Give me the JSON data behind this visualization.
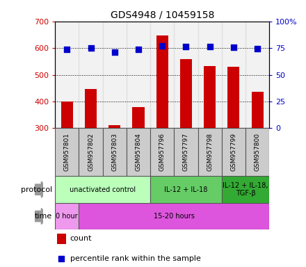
{
  "title": "GDS4948 / 10459158",
  "samples": [
    "GSM957801",
    "GSM957802",
    "GSM957803",
    "GSM957804",
    "GSM957796",
    "GSM957797",
    "GSM957798",
    "GSM957799",
    "GSM957800"
  ],
  "count_values": [
    400,
    447,
    310,
    378,
    648,
    558,
    532,
    530,
    435
  ],
  "percentile_values": [
    74,
    75,
    71,
    73.5,
    77,
    76.5,
    76.5,
    75.5,
    74.5
  ],
  "ylim_left": [
    300,
    700
  ],
  "ylim_right": [
    0,
    100
  ],
  "yticks_left": [
    300,
    400,
    500,
    600,
    700
  ],
  "yticks_right": [
    0,
    25,
    50,
    75,
    100
  ],
  "bar_color": "#cc0000",
  "dot_color": "#0000cc",
  "protocol_groups": [
    {
      "label": "unactivated control",
      "start": 0,
      "end": 4,
      "color": "#bbffbb"
    },
    {
      "label": "IL-12 + IL-18",
      "start": 4,
      "end": 7,
      "color": "#66cc66"
    },
    {
      "label": "IL-12 + IL-18,\nTGF-β",
      "start": 7,
      "end": 9,
      "color": "#33aa33"
    }
  ],
  "time_groups": [
    {
      "label": "0 hour",
      "start": 0,
      "end": 1,
      "color": "#ee99ee"
    },
    {
      "label": "15-20 hours",
      "start": 1,
      "end": 9,
      "color": "#dd55dd"
    }
  ],
  "protocol_label": "protocol",
  "time_label": "time",
  "legend_count": "count",
  "legend_pct": "percentile rank within the sample",
  "tick_label_color_left": "#cc0000",
  "tick_label_color_right": "#0000cc",
  "bar_width": 0.5,
  "dot_size": 35,
  "cell_bg": "#cccccc",
  "cell_edge": "#888888"
}
